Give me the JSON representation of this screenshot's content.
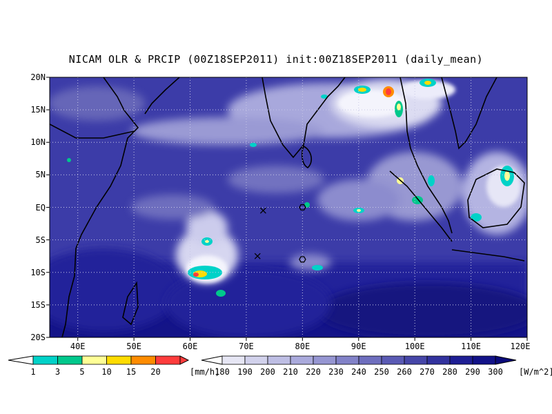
{
  "title": "NICAM OLR & PRCIP (00Z18SEP2011) init:00Z18SEP2011 (daily_mean)",
  "map": {
    "lat_ticks": [
      "20N",
      "15N",
      "10N",
      "5N",
      "EQ",
      "5S",
      "10S",
      "15S",
      "20S"
    ],
    "lon_ticks": [
      "40E",
      "50E",
      "60E",
      "70E",
      "80E",
      "90E",
      "100E",
      "110E",
      "120E"
    ],
    "lat_range": [
      -20,
      20
    ],
    "lon_range": [
      35,
      120
    ],
    "grid": "dotted",
    "markers": [
      {
        "type": "cross-icon",
        "lon": 73,
        "lat": -0.5
      },
      {
        "type": "cross-icon",
        "lon": 72,
        "lat": -7.5
      },
      {
        "type": "hexagon-icon",
        "lon": 80,
        "lat": 0
      },
      {
        "type": "hexagon-icon",
        "lon": 80,
        "lat": -8
      }
    ]
  },
  "precip_colorbar": {
    "labels": [
      "1",
      "3",
      "5",
      "10",
      "15",
      "20"
    ],
    "unit": "[mm/h]",
    "colors": [
      "#00d2c8",
      "#00c88c",
      "#ffff96",
      "#ffdc00",
      "#ff8c00",
      "#ff3c3c"
    ]
  },
  "olr_colorbar": {
    "labels": [
      "180",
      "190",
      "200",
      "210",
      "220",
      "230",
      "240",
      "250",
      "260",
      "270",
      "280",
      "290",
      "300"
    ],
    "unit": "[W/m^2]",
    "colors": [
      "#ffffff",
      "#e6e6f4",
      "#d2d2ec",
      "#beBEE4",
      "#aaaadc",
      "#9696d2",
      "#8282c8",
      "#6e6ebe",
      "#5a5ab4",
      "#4646a8",
      "#32329e",
      "#1e1e94",
      "#121288",
      "#0a0a7a"
    ]
  }
}
